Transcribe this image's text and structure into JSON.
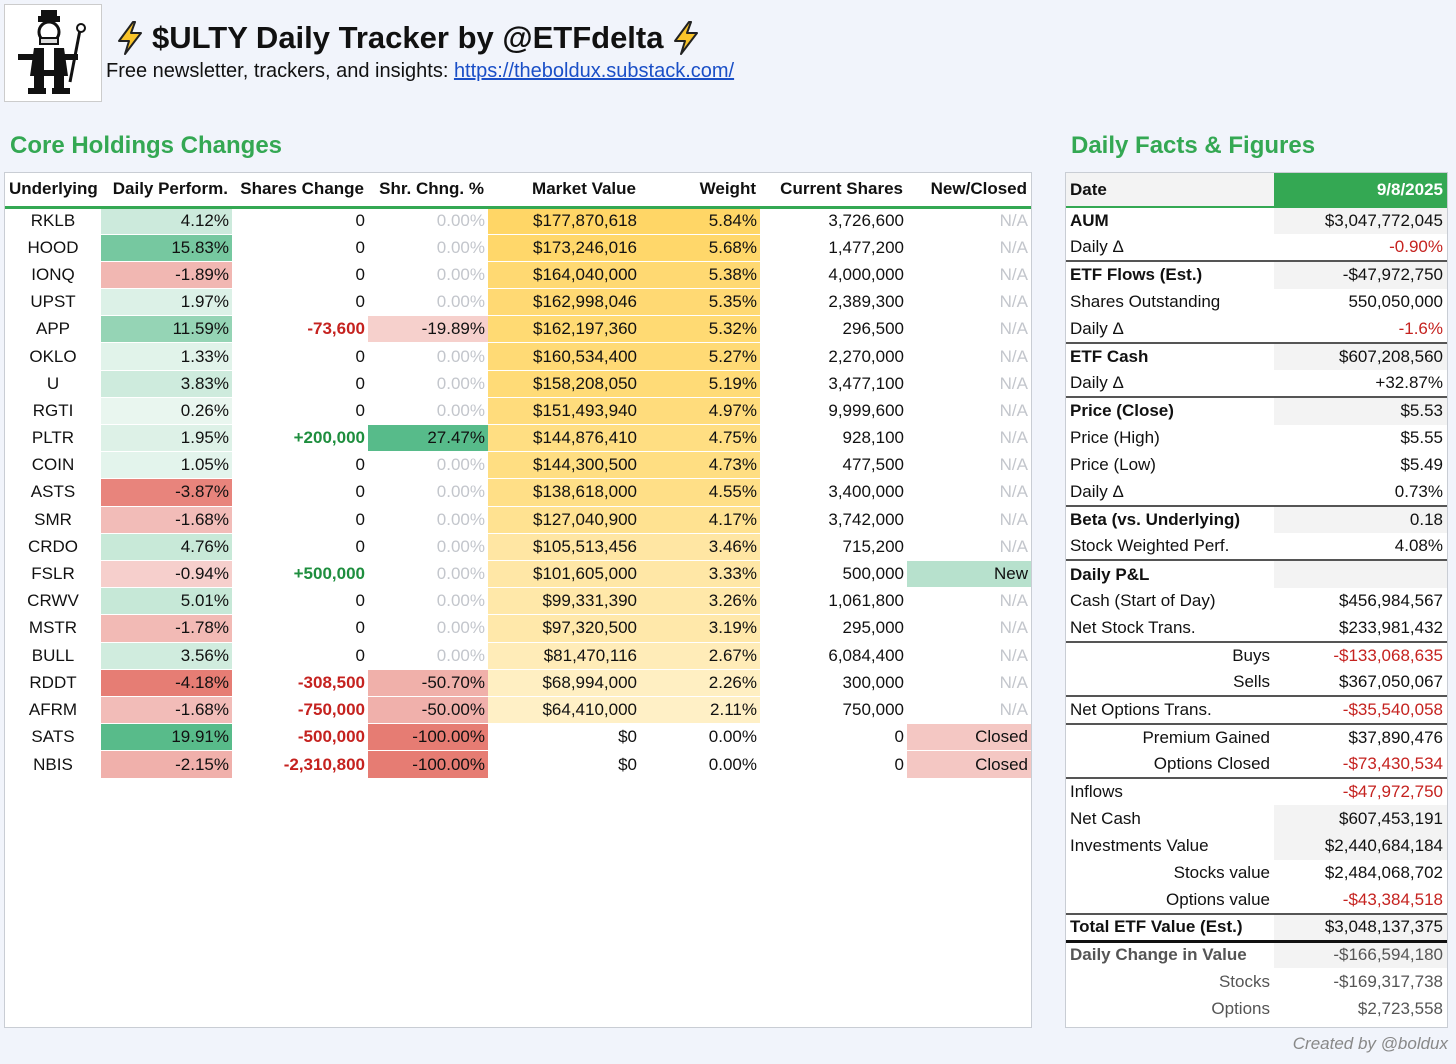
{
  "header": {
    "title": "$ULTY Daily Tracker by @ETFdelta",
    "subtitle_prefix": "Free newsletter, trackers, and insights: ",
    "link": "https://theboldux.substack.com/"
  },
  "core": {
    "title": "Core Holdings Changes",
    "columns": [
      "Underlying",
      "Daily Perform.",
      "Shares Change",
      "Shr. Chng. %",
      "Market Value",
      "Weight",
      "Current Shares",
      "New/Closed"
    ],
    "rows": [
      {
        "t": "RKLB",
        "p": "4.12%",
        "sc": "0",
        "scp": "0.00%",
        "mv": "$177,870,618",
        "w": "5.84%",
        "cs": "3,726,600",
        "nc": "N/A"
      },
      {
        "t": "HOOD",
        "p": "15.83%",
        "sc": "0",
        "scp": "0.00%",
        "mv": "$173,246,016",
        "w": "5.68%",
        "cs": "1,477,200",
        "nc": "N/A"
      },
      {
        "t": "IONQ",
        "p": "-1.89%",
        "sc": "0",
        "scp": "0.00%",
        "mv": "$164,040,000",
        "w": "5.38%",
        "cs": "4,000,000",
        "nc": "N/A"
      },
      {
        "t": "UPST",
        "p": "1.97%",
        "sc": "0",
        "scp": "0.00%",
        "mv": "$162,998,046",
        "w": "5.35%",
        "cs": "2,389,300",
        "nc": "N/A"
      },
      {
        "t": "APP",
        "p": "11.59%",
        "sc": "-73,600",
        "scp": "-19.89%",
        "mv": "$162,197,360",
        "w": "5.32%",
        "cs": "296,500",
        "nc": "N/A"
      },
      {
        "t": "OKLO",
        "p": "1.33%",
        "sc": "0",
        "scp": "0.00%",
        "mv": "$160,534,400",
        "w": "5.27%",
        "cs": "2,270,000",
        "nc": "N/A"
      },
      {
        "t": "U",
        "p": "3.83%",
        "sc": "0",
        "scp": "0.00%",
        "mv": "$158,208,050",
        "w": "5.19%",
        "cs": "3,477,100",
        "nc": "N/A"
      },
      {
        "t": "RGTI",
        "p": "0.26%",
        "sc": "0",
        "scp": "0.00%",
        "mv": "$151,493,940",
        "w": "4.97%",
        "cs": "9,999,600",
        "nc": "N/A"
      },
      {
        "t": "PLTR",
        "p": "1.95%",
        "sc": "+200,000",
        "scp": "27.47%",
        "mv": "$144,876,410",
        "w": "4.75%",
        "cs": "928,100",
        "nc": "N/A"
      },
      {
        "t": "COIN",
        "p": "1.05%",
        "sc": "0",
        "scp": "0.00%",
        "mv": "$144,300,500",
        "w": "4.73%",
        "cs": "477,500",
        "nc": "N/A"
      },
      {
        "t": "ASTS",
        "p": "-3.87%",
        "sc": "0",
        "scp": "0.00%",
        "mv": "$138,618,000",
        "w": "4.55%",
        "cs": "3,400,000",
        "nc": "N/A"
      },
      {
        "t": "SMR",
        "p": "-1.68%",
        "sc": "0",
        "scp": "0.00%",
        "mv": "$127,040,900",
        "w": "4.17%",
        "cs": "3,742,000",
        "nc": "N/A"
      },
      {
        "t": "CRDO",
        "p": "4.76%",
        "sc": "0",
        "scp": "0.00%",
        "mv": "$105,513,456",
        "w": "3.46%",
        "cs": "715,200",
        "nc": "N/A"
      },
      {
        "t": "FSLR",
        "p": "-0.94%",
        "sc": "+500,000",
        "scp": "0.00%",
        "mv": "$101,605,000",
        "w": "3.33%",
        "cs": "500,000",
        "nc": "New"
      },
      {
        "t": "CRWV",
        "p": "5.01%",
        "sc": "0",
        "scp": "0.00%",
        "mv": "$99,331,390",
        "w": "3.26%",
        "cs": "1,061,800",
        "nc": "N/A"
      },
      {
        "t": "MSTR",
        "p": "-1.78%",
        "sc": "0",
        "scp": "0.00%",
        "mv": "$97,320,500",
        "w": "3.19%",
        "cs": "295,000",
        "nc": "N/A"
      },
      {
        "t": "BULL",
        "p": "3.56%",
        "sc": "0",
        "scp": "0.00%",
        "mv": "$81,470,116",
        "w": "2.67%",
        "cs": "6,084,400",
        "nc": "N/A"
      },
      {
        "t": "RDDT",
        "p": "-4.18%",
        "sc": "-308,500",
        "scp": "-50.70%",
        "mv": "$68,994,000",
        "w": "2.26%",
        "cs": "300,000",
        "nc": "N/A"
      },
      {
        "t": "AFRM",
        "p": "-1.68%",
        "sc": "-750,000",
        "scp": "-50.00%",
        "mv": "$64,410,000",
        "w": "2.11%",
        "cs": "750,000",
        "nc": "N/A"
      },
      {
        "t": "SATS",
        "p": "19.91%",
        "sc": "-500,000",
        "scp": "-100.00%",
        "mv": "$0",
        "w": "0.00%",
        "cs": "0",
        "nc": "Closed"
      },
      {
        "t": "NBIS",
        "p": "-2.15%",
        "sc": "-2,310,800",
        "scp": "-100.00%",
        "mv": "$0",
        "w": "0.00%",
        "cs": "0",
        "nc": "Closed"
      }
    ]
  },
  "facts": {
    "title": "Daily Facts & Figures",
    "date_label": "Date",
    "date_value": "9/8/2025",
    "rows": [
      {
        "k": "AUM",
        "v": "$3,047,772,045",
        "b": true
      },
      {
        "k": "Daily Δ",
        "v": "-0.90%",
        "red": true,
        "plain": true
      },
      {
        "k": "ETF Flows (Est.)",
        "v": "-$47,972,750",
        "b": true,
        "sep": true
      },
      {
        "k": "Shares Outstanding",
        "v": "550,050,000",
        "plain": true
      },
      {
        "k": "Daily Δ",
        "v": "-1.6%",
        "red": true,
        "plain": true
      },
      {
        "k": "ETF Cash",
        "v": "$607,208,560",
        "b": true,
        "sep": true
      },
      {
        "k": "Daily Δ",
        "v": "+32.87%",
        "plain": true
      },
      {
        "k": "Price (Close)",
        "v": "$5.53",
        "b": true,
        "sep": true
      },
      {
        "k": "Price (High)",
        "v": "$5.55",
        "plain": true
      },
      {
        "k": "Price (Low)",
        "v": "$5.49",
        "plain": true
      },
      {
        "k": "Daily Δ",
        "v": "0.73%",
        "plain": true
      },
      {
        "k": "Beta (vs. Underlying)",
        "v": "0.18",
        "b": true,
        "sep": true
      },
      {
        "k": "Stock Weighted Perf.",
        "v": "4.08%",
        "plain": true
      },
      {
        "k": "Daily P&L",
        "v": "",
        "b": true,
        "sep": true
      },
      {
        "k": "Cash (Start of Day)",
        "v": "$456,984,567",
        "plain": true
      },
      {
        "k": "Net Stock Trans.",
        "v": "$233,981,432",
        "plain": true
      },
      {
        "k": "Buys",
        "v": "-$133,068,635",
        "red": true,
        "ind": true,
        "sep": true,
        "plain": true
      },
      {
        "k": "Sells",
        "v": "$367,050,067",
        "ind": true,
        "plain": true
      },
      {
        "k": "Net Options Trans.",
        "v": "-$35,540,058",
        "red": true,
        "sep": true,
        "plain": true
      },
      {
        "k": "Premium Gained",
        "v": "$37,890,476",
        "ind": true,
        "sep": true,
        "plain": true
      },
      {
        "k": "Options Closed",
        "v": "-$73,430,534",
        "red": true,
        "ind": true,
        "plain": true
      },
      {
        "k": "Inflows",
        "v": "-$47,972,750",
        "red": true,
        "sep": true,
        "plain": true
      },
      {
        "k": "Net Cash",
        "v": "$607,453,191"
      },
      {
        "k": "Investments Value",
        "v": "$2,440,684,184"
      },
      {
        "k": "Stocks value",
        "v": "$2,484,068,702",
        "ind": true,
        "plain": true
      },
      {
        "k": "Options value",
        "v": "-$43,384,518",
        "red": true,
        "ind": true,
        "plain": true
      },
      {
        "k": "Total ETF Value (Est.)",
        "v": "$3,048,137,375",
        "b": true,
        "sep": true
      },
      {
        "k": "Daily Change in Value",
        "v": "-$166,594,180",
        "red": true,
        "b": true,
        "septhick": true,
        "muted": true
      },
      {
        "k": "Stocks",
        "v": "-$169,317,738",
        "red": true,
        "ind": true,
        "muted": true,
        "plain": true
      },
      {
        "k": "Options",
        "v": "$2,723,558",
        "ind": true,
        "muted": true,
        "plain": true
      }
    ]
  },
  "credit": "Created by @boldux",
  "icons": {
    "logo": "monopoly-man-icon",
    "bolt": "lightning-bolt-icon"
  }
}
